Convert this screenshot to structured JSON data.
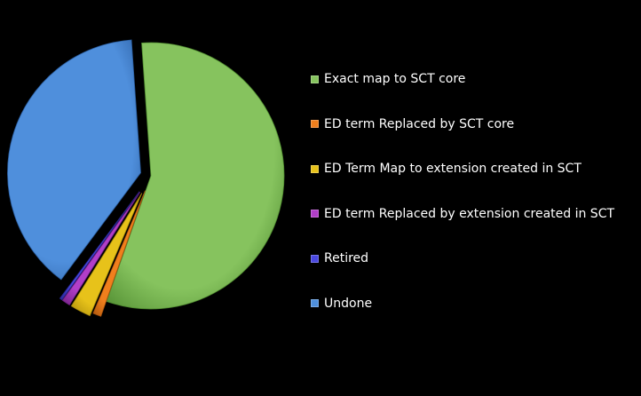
{
  "chart_data": {
    "type": "pie",
    "title": "",
    "legend_position": "right",
    "slices": [
      {
        "label": "Exact map to SCT core",
        "value": 56.5,
        "color": "#86c35e",
        "dark": "#4e8a2f"
      },
      {
        "label": "ED term Replaced by SCT core",
        "value": 1.0,
        "color": "#f07f1d",
        "dark": "#a6520c"
      },
      {
        "label": "ED Term Map to extension created in SCT",
        "value": 2.5,
        "color": "#e7c21a",
        "dark": "#a3850a"
      },
      {
        "label": "ED term Replaced by extension created in SCT",
        "value": 1.0,
        "color": "#b13ec8",
        "dark": "#6e1f80"
      },
      {
        "label": "Retired",
        "value": 0.3,
        "color": "#4a48e0",
        "dark": "#26258f"
      },
      {
        "label": "Undone",
        "value": 38.7,
        "color": "#4f8fdc",
        "dark": "#2a5da0"
      }
    ]
  }
}
